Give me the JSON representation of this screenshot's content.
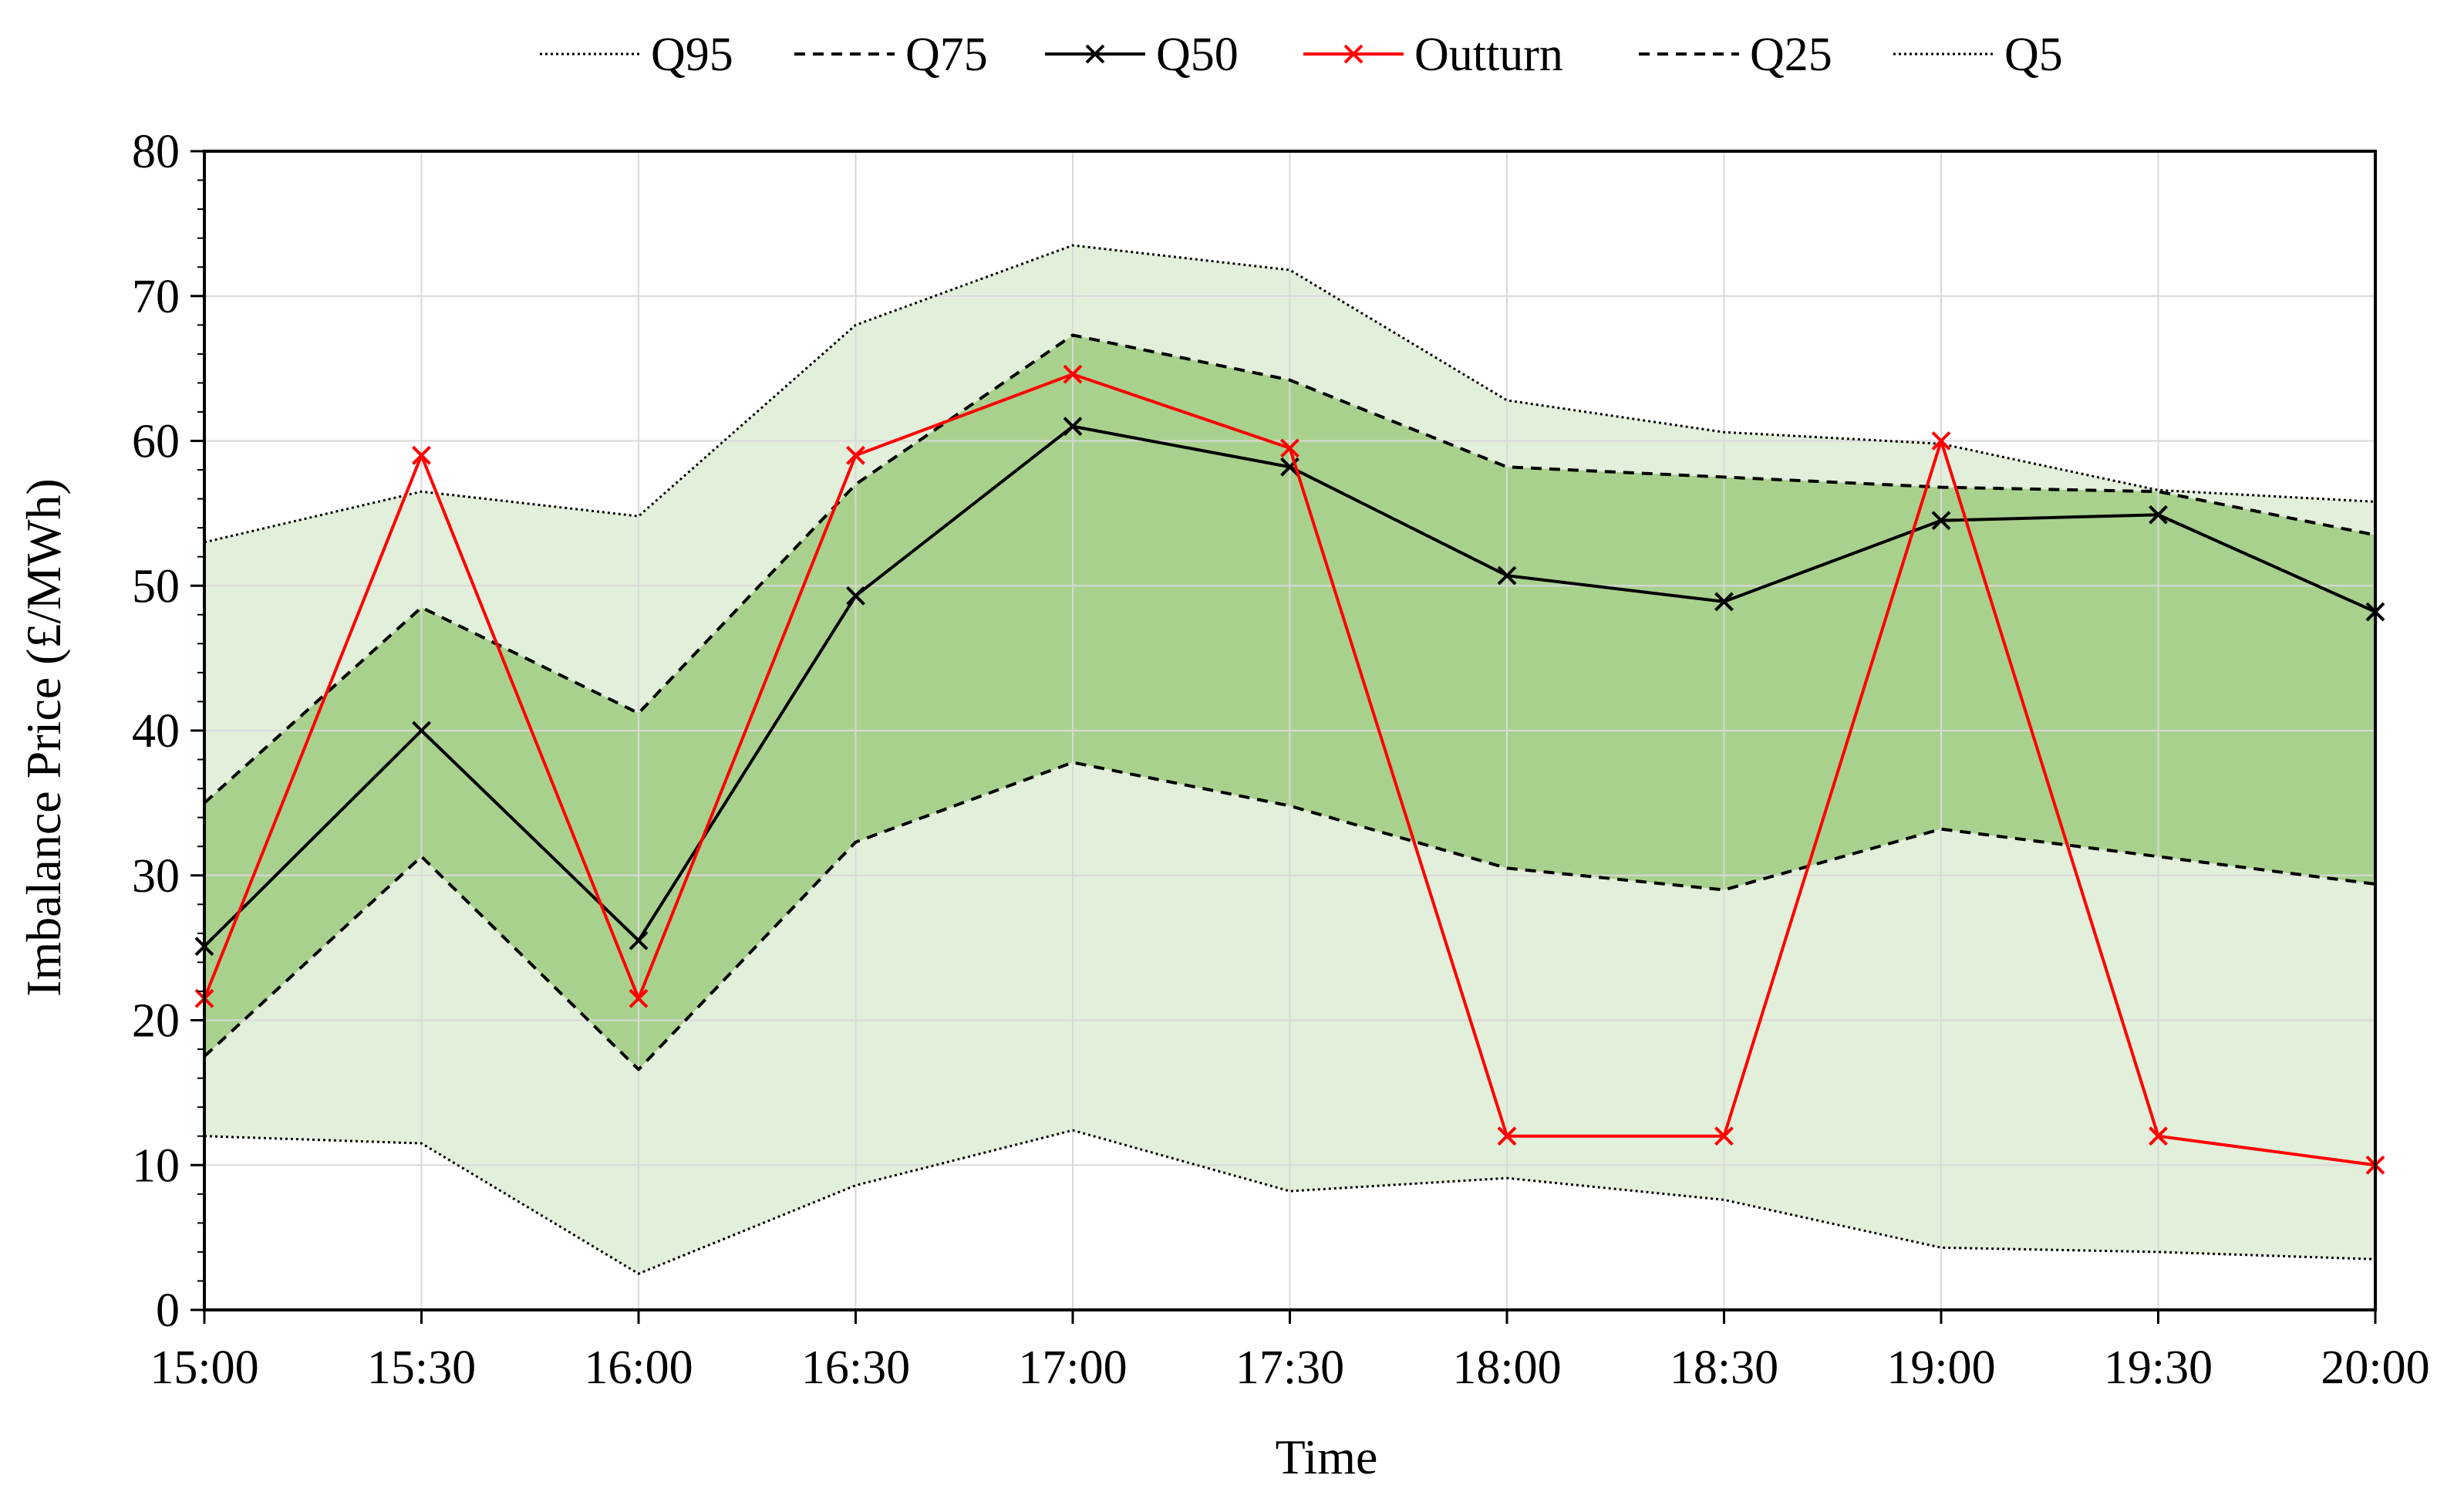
{
  "chart_data": {
    "type": "line",
    "title": "",
    "xlabel": "Time",
    "ylabel": "Imbalance Price (£/MWh)",
    "categories": [
      "15:00",
      "15:30",
      "16:00",
      "16:30",
      "17:00",
      "17:30",
      "18:00",
      "18:30",
      "19:00",
      "19:30",
      "20:00"
    ],
    "ylim": [
      0,
      80
    ],
    "yticks": [
      0,
      10,
      20,
      30,
      40,
      50,
      60,
      70,
      80
    ],
    "yticks_minor_step": 2,
    "grid": true,
    "legend_position": "top",
    "series": [
      {
        "name": "Q95",
        "style": "dotted",
        "values": [
          53.0,
          56.5,
          54.8,
          68.0,
          73.5,
          71.8,
          62.8,
          60.6,
          59.8,
          56.6,
          55.8
        ]
      },
      {
        "name": "Q75",
        "style": "dashed",
        "values": [
          35.0,
          48.5,
          41.2,
          57.0,
          67.3,
          64.2,
          58.2,
          57.5,
          56.8,
          56.5,
          53.5
        ]
      },
      {
        "name": "Q50",
        "style": "solid-x",
        "values": [
          25.1,
          40.0,
          25.5,
          49.3,
          61.0,
          58.2,
          50.7,
          48.9,
          54.5,
          54.9,
          48.2
        ]
      },
      {
        "name": "Outturn",
        "style": "solid-x",
        "values": [
          21.5,
          59.0,
          21.5,
          59.0,
          64.6,
          59.5,
          12.0,
          12.0,
          60.0,
          12.0,
          10.0
        ]
      },
      {
        "name": "Q25",
        "style": "dashed",
        "values": [
          17.5,
          31.3,
          16.6,
          32.3,
          37.8,
          34.8,
          30.5,
          29.0,
          33.2,
          31.3,
          29.4
        ]
      },
      {
        "name": "Q5",
        "style": "dotted",
        "values": [
          12.0,
          11.5,
          2.5,
          8.6,
          12.4,
          8.2,
          9.1,
          7.6,
          4.3,
          4.0,
          3.5
        ]
      }
    ],
    "bands": [
      {
        "name": "Q5-Q95",
        "lower": "Q5",
        "upper": "Q95"
      },
      {
        "name": "Q25-Q75",
        "lower": "Q25",
        "upper": "Q75"
      }
    ]
  },
  "colors": {
    "outer_band": "#e2efda",
    "inner_band": "#a9d18e",
    "outturn": "#ff0000",
    "quantile": "#000000",
    "grid": "#d9d9d9"
  }
}
